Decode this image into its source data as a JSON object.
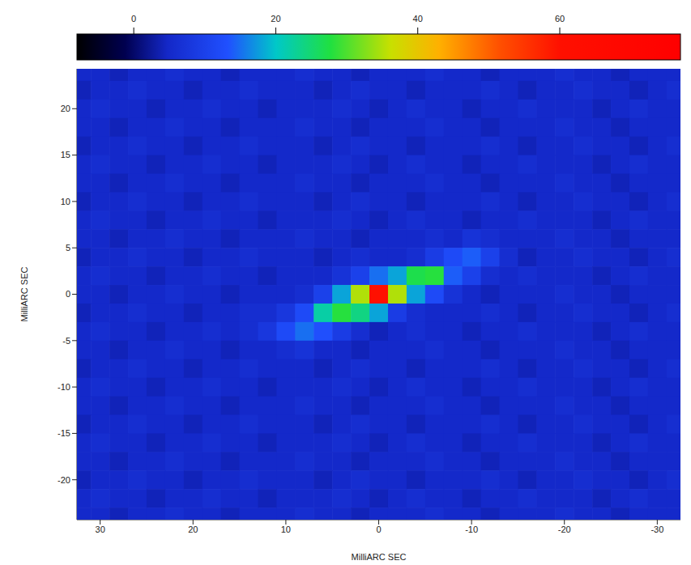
{
  "chart_data": {
    "type": "heatmap",
    "x_label": "MilliARC SEC",
    "y_label": "MilliARC SEC",
    "xlim": [
      32.5,
      -32.5
    ],
    "xticks": [
      30,
      20,
      10,
      0,
      -10,
      -20,
      -30
    ],
    "ylim": [
      -24.3,
      24.3
    ],
    "yticks": [
      -20,
      -15,
      -10,
      -5,
      0,
      5,
      10,
      15,
      20
    ],
    "x": [
      32,
      30,
      28,
      26,
      24,
      22,
      20,
      18,
      16,
      14,
      12,
      10,
      8,
      6,
      4,
      2,
      0,
      -2,
      -4,
      -6,
      -8,
      -10,
      -12,
      -14,
      -16,
      -18,
      -20,
      -22,
      -24,
      -26,
      -28,
      -30,
      -32
    ],
    "y": [
      24,
      22,
      20,
      18,
      16,
      14,
      12,
      10,
      8,
      6,
      4,
      2,
      0,
      -2,
      -4,
      -6,
      -8,
      -10,
      -12,
      -14,
      -16,
      -18,
      -20,
      -22,
      -24
    ],
    "cells": [
      [
        5,
        5,
        4,
        5,
        5,
        6,
        5,
        5,
        4,
        5,
        5,
        5,
        6,
        5,
        5,
        4,
        5,
        5,
        5,
        6,
        5,
        5,
        4,
        5,
        5,
        5,
        6,
        5,
        5,
        4,
        5,
        5,
        5
      ],
      [
        4,
        5,
        5,
        6,
        5,
        5,
        4,
        5,
        5,
        6,
        5,
        5,
        5,
        4,
        5,
        6,
        5,
        5,
        4,
        5,
        5,
        5,
        6,
        5,
        4,
        5,
        5,
        6,
        5,
        5,
        4,
        5,
        6
      ],
      [
        5,
        6,
        5,
        5,
        4,
        5,
        5,
        6,
        5,
        5,
        4,
        5,
        5,
        5,
        6,
        5,
        4,
        5,
        6,
        5,
        5,
        4,
        5,
        5,
        6,
        5,
        5,
        5,
        4,
        5,
        6,
        5,
        5
      ],
      [
        5,
        5,
        4,
        5,
        5,
        6,
        5,
        5,
        4,
        5,
        5,
        5,
        6,
        5,
        5,
        4,
        5,
        5,
        5,
        6,
        5,
        5,
        4,
        5,
        5,
        5,
        6,
        5,
        5,
        4,
        5,
        5,
        5
      ],
      [
        4,
        5,
        5,
        6,
        5,
        5,
        4,
        5,
        5,
        6,
        5,
        5,
        5,
        4,
        5,
        6,
        5,
        5,
        4,
        5,
        5,
        5,
        6,
        5,
        4,
        5,
        5,
        6,
        5,
        5,
        4,
        5,
        6
      ],
      [
        5,
        6,
        5,
        5,
        4,
        5,
        5,
        6,
        5,
        5,
        4,
        5,
        5,
        5,
        6,
        5,
        4,
        5,
        6,
        5,
        5,
        4,
        5,
        5,
        6,
        5,
        5,
        5,
        4,
        5,
        6,
        5,
        5
      ],
      [
        5,
        5,
        4,
        5,
        5,
        6,
        5,
        5,
        4,
        5,
        5,
        5,
        6,
        5,
        5,
        4,
        5,
        5,
        5,
        6,
        5,
        5,
        4,
        5,
        5,
        5,
        6,
        5,
        5,
        4,
        5,
        5,
        5
      ],
      [
        4,
        5,
        5,
        6,
        5,
        5,
        4,
        5,
        5,
        6,
        5,
        5,
        5,
        4,
        5,
        6,
        5,
        5,
        4,
        5,
        5,
        5,
        6,
        5,
        4,
        5,
        5,
        6,
        5,
        5,
        4,
        5,
        6
      ],
      [
        5,
        6,
        5,
        5,
        4,
        5,
        5,
        6,
        5,
        5,
        4,
        5,
        5,
        5,
        6,
        5,
        4,
        5,
        6,
        5,
        5,
        4,
        5,
        5,
        6,
        5,
        5,
        5,
        4,
        5,
        6,
        5,
        5
      ],
      [
        5,
        5,
        4,
        5,
        5,
        6,
        5,
        5,
        4,
        5,
        5,
        5,
        6,
        5,
        5,
        4,
        5,
        5,
        5,
        6,
        5,
        7,
        6,
        5,
        5,
        5,
        6,
        5,
        5,
        4,
        5,
        5,
        5
      ],
      [
        4,
        5,
        5,
        6,
        5,
        5,
        4,
        5,
        5,
        6,
        5,
        5,
        5,
        4,
        5,
        6,
        5,
        5,
        6,
        9,
        12,
        14,
        10,
        6,
        4,
        5,
        5,
        6,
        5,
        5,
        4,
        5,
        6
      ],
      [
        5,
        6,
        5,
        5,
        4,
        5,
        5,
        6,
        5,
        5,
        4,
        5,
        5,
        5,
        7,
        10,
        15,
        18,
        27,
        28,
        14,
        10,
        6,
        5,
        6,
        5,
        5,
        5,
        4,
        5,
        6,
        5,
        5
      ],
      [
        5,
        5,
        4,
        5,
        5,
        6,
        5,
        5,
        4,
        5,
        5,
        5,
        6,
        10,
        18,
        35,
        60,
        35,
        18,
        12,
        7,
        5,
        4,
        5,
        5,
        5,
        6,
        5,
        5,
        4,
        5,
        5,
        5
      ],
      [
        4,
        5,
        5,
        6,
        5,
        5,
        4,
        5,
        5,
        6,
        6,
        8,
        12,
        22,
        28,
        24,
        18,
        9,
        6,
        5,
        5,
        5,
        6,
        5,
        4,
        5,
        5,
        6,
        5,
        5,
        4,
        5,
        6
      ],
      [
        5,
        6,
        5,
        5,
        4,
        5,
        5,
        6,
        5,
        6,
        8,
        12,
        15,
        13,
        9,
        6,
        4,
        5,
        6,
        5,
        5,
        4,
        5,
        5,
        6,
        5,
        5,
        5,
        4,
        5,
        6,
        5,
        5
      ],
      [
        5,
        5,
        4,
        5,
        5,
        6,
        5,
        5,
        4,
        5,
        5,
        6,
        7,
        5,
        5,
        4,
        5,
        5,
        5,
        6,
        5,
        5,
        4,
        5,
        5,
        5,
        6,
        5,
        5,
        4,
        5,
        5,
        5
      ],
      [
        4,
        5,
        5,
        6,
        5,
        5,
        4,
        5,
        5,
        6,
        5,
        5,
        5,
        4,
        5,
        6,
        5,
        5,
        4,
        5,
        5,
        5,
        6,
        5,
        4,
        5,
        5,
        6,
        5,
        5,
        4,
        5,
        6
      ],
      [
        5,
        6,
        5,
        5,
        4,
        5,
        5,
        6,
        5,
        5,
        4,
        5,
        5,
        5,
        6,
        5,
        4,
        5,
        6,
        5,
        5,
        4,
        5,
        5,
        6,
        5,
        5,
        5,
        4,
        5,
        6,
        5,
        5
      ],
      [
        5,
        5,
        4,
        5,
        5,
        6,
        5,
        5,
        4,
        5,
        5,
        5,
        6,
        5,
        5,
        4,
        5,
        5,
        5,
        6,
        5,
        5,
        4,
        5,
        5,
        5,
        6,
        5,
        5,
        4,
        5,
        5,
        5
      ],
      [
        4,
        5,
        5,
        6,
        5,
        5,
        4,
        5,
        5,
        6,
        5,
        5,
        5,
        4,
        5,
        6,
        5,
        5,
        4,
        5,
        5,
        5,
        6,
        5,
        4,
        5,
        5,
        6,
        5,
        5,
        4,
        5,
        6
      ],
      [
        5,
        6,
        5,
        5,
        4,
        5,
        5,
        6,
        5,
        5,
        4,
        5,
        5,
        5,
        6,
        5,
        4,
        5,
        6,
        5,
        5,
        4,
        5,
        5,
        6,
        5,
        5,
        5,
        4,
        5,
        6,
        5,
        5
      ],
      [
        5,
        5,
        4,
        5,
        5,
        6,
        5,
        5,
        4,
        5,
        5,
        5,
        6,
        5,
        5,
        4,
        5,
        5,
        5,
        6,
        5,
        5,
        4,
        5,
        5,
        5,
        6,
        5,
        5,
        4,
        5,
        5,
        5
      ],
      [
        4,
        5,
        5,
        6,
        5,
        5,
        4,
        5,
        5,
        6,
        5,
        5,
        5,
        4,
        5,
        6,
        5,
        5,
        4,
        5,
        5,
        5,
        6,
        5,
        4,
        5,
        5,
        6,
        5,
        5,
        4,
        5,
        6
      ],
      [
        5,
        6,
        5,
        5,
        4,
        5,
        5,
        6,
        5,
        5,
        4,
        5,
        5,
        5,
        6,
        5,
        4,
        5,
        6,
        5,
        5,
        4,
        5,
        5,
        6,
        5,
        5,
        5,
        4,
        5,
        6,
        5,
        5
      ],
      [
        5,
        5,
        4,
        5,
        5,
        6,
        5,
        5,
        4,
        5,
        5,
        5,
        6,
        5,
        5,
        4,
        5,
        5,
        5,
        6,
        5,
        5,
        4,
        5,
        5,
        5,
        6,
        5,
        5,
        4,
        5,
        5,
        5
      ]
    ],
    "colorbar": {
      "range": [
        -8,
        77
      ],
      "ticks": [
        0,
        20,
        40,
        60
      ]
    }
  }
}
